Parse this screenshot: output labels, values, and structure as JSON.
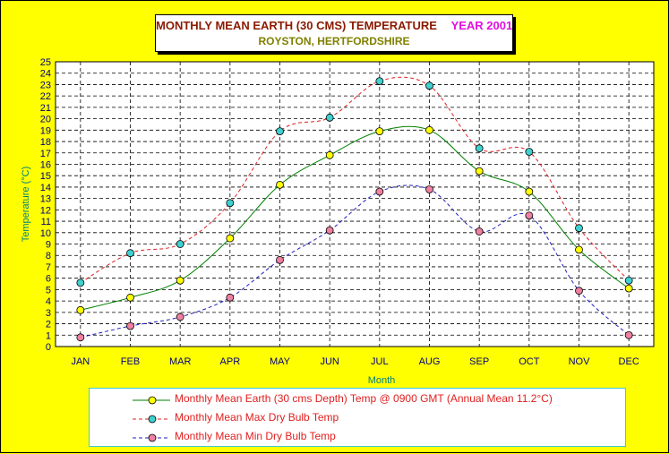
{
  "header": {
    "title": "MONTHLY MEAN EARTH (30 CMS) TEMPERATURE",
    "year": "YEAR 2001",
    "subtitle": "ROYSTON, HERTFORDSHIRE"
  },
  "chart_data": {
    "type": "line",
    "xlabel": "Month",
    "ylabel": "Temperature (°C)",
    "ylim": [
      0,
      25
    ],
    "grid": true,
    "legend_position": "bottom",
    "categories": [
      "JAN",
      "FEB",
      "MAR",
      "APR",
      "MAY",
      "JUN",
      "JUL",
      "AUG",
      "SEP",
      "OCT",
      "NOV",
      "DEC"
    ],
    "series": [
      {
        "name": "Monthly Mean Earth (30 cms Depth) Temp @ 0900 GMT (Annual Mean 11.2°C)",
        "values": [
          3.2,
          4.3,
          5.8,
          9.5,
          14.2,
          16.8,
          18.9,
          19.0,
          15.4,
          13.6,
          8.5,
          5.1
        ],
        "line_color": "#008000",
        "marker_color": "#ffff00",
        "dashed": false
      },
      {
        "name": "Monthly Mean Max Dry Bulb Temp",
        "values": [
          5.6,
          8.2,
          9.0,
          12.6,
          18.9,
          20.1,
          23.3,
          22.9,
          17.4,
          17.1,
          10.4,
          5.8
        ],
        "line_color": "#e02020",
        "marker_color": "#40d0d0",
        "dashed": true
      },
      {
        "name": "Monthly Mean Min Dry Bulb Temp",
        "values": [
          0.8,
          1.8,
          2.6,
          4.3,
          7.6,
          10.2,
          13.6,
          13.8,
          10.1,
          11.5,
          4.9,
          1.0
        ],
        "line_color": "#2020c0",
        "marker_color": "#f080a0",
        "dashed": true
      }
    ]
  },
  "colors": {
    "background": "#ffff00",
    "plot_area": "#ffffff",
    "axis_text": "#000080",
    "axis_title": "#008080"
  }
}
